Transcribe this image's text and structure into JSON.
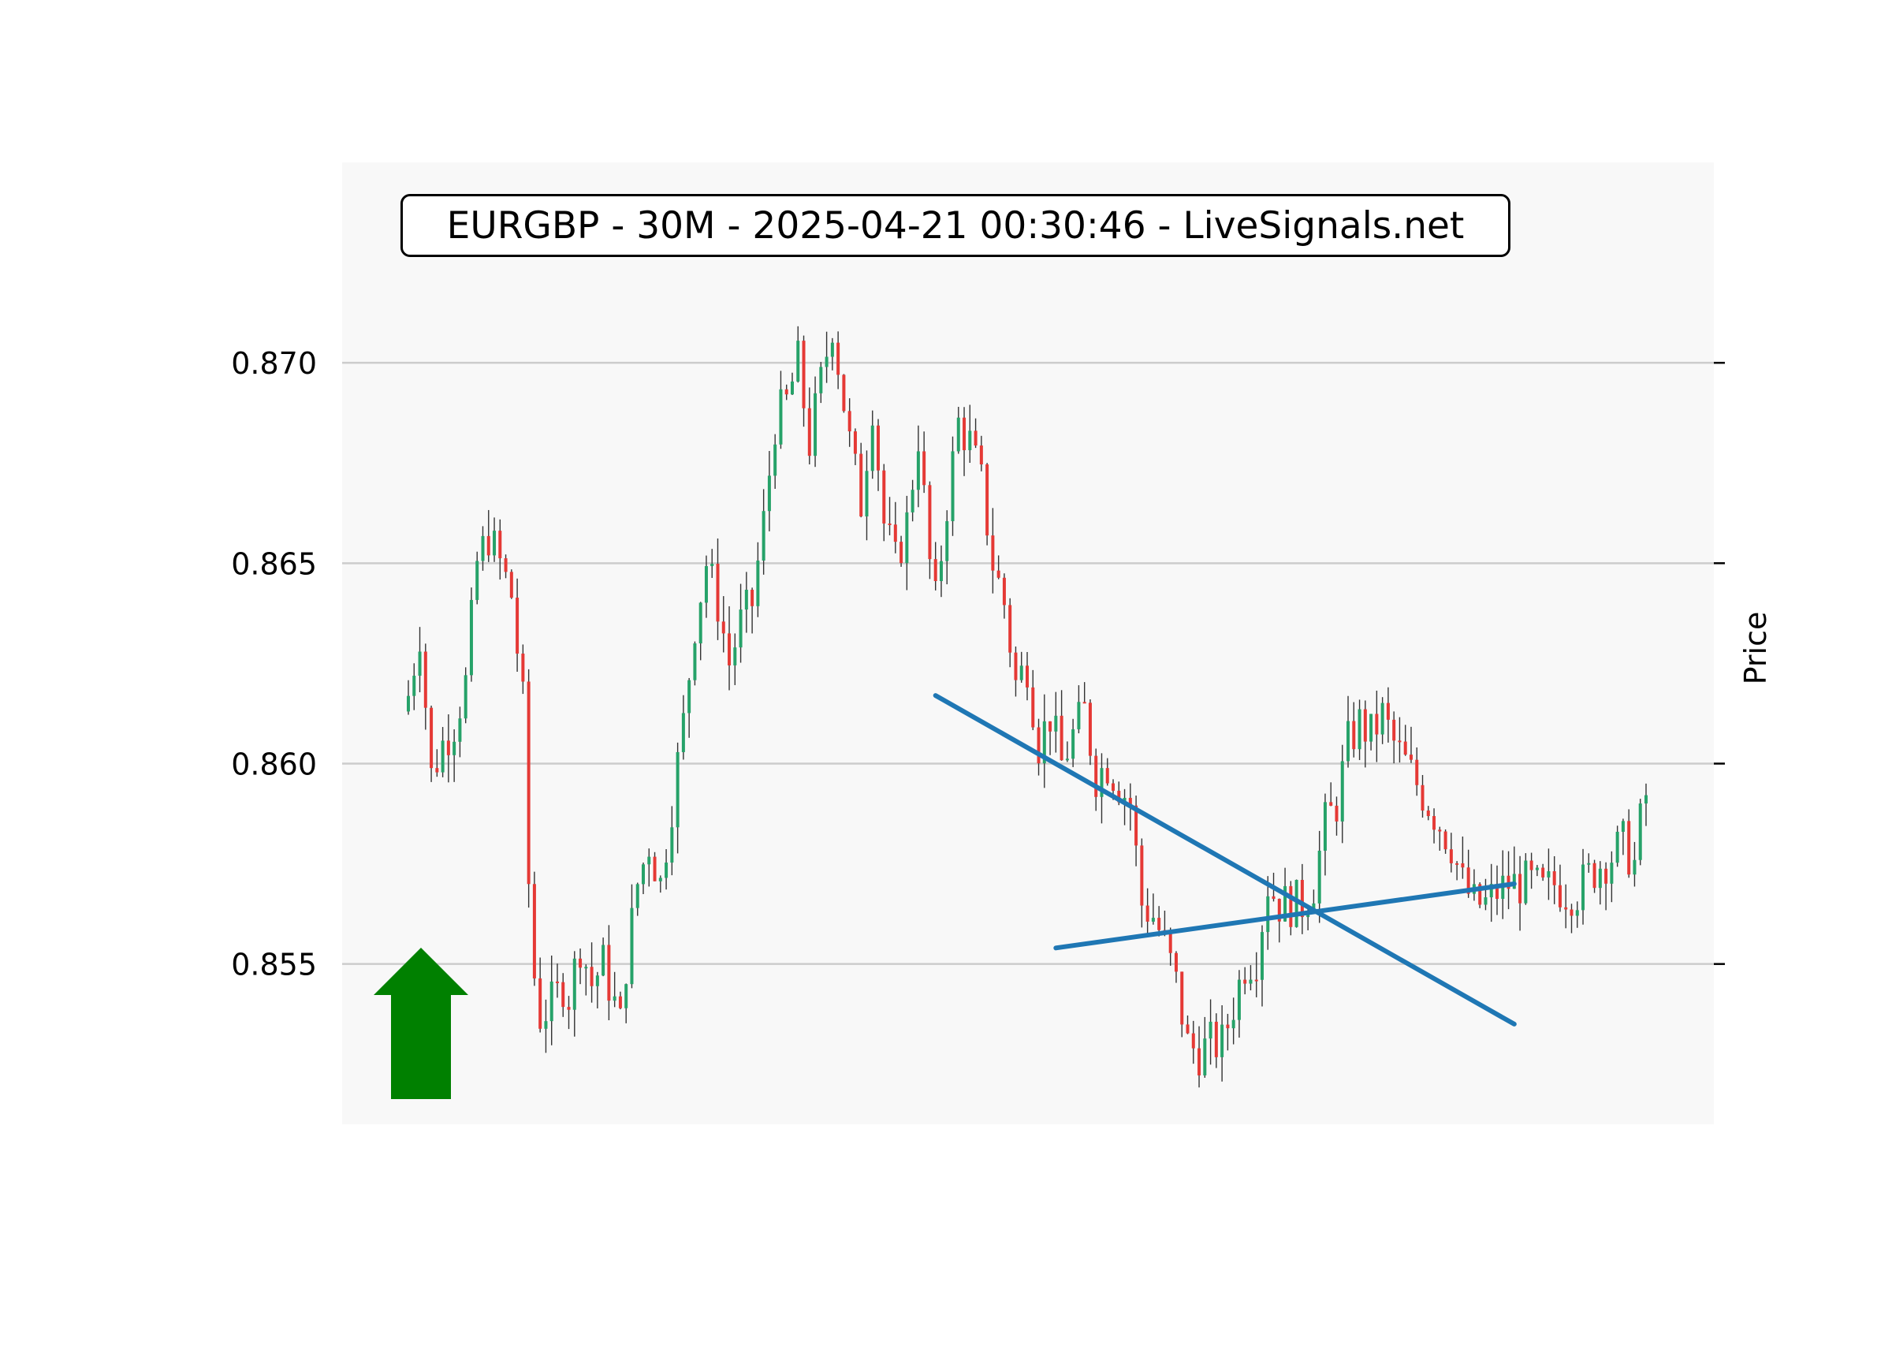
{
  "chart_data": {
    "type": "candlestick",
    "title": "EURGBP - 30M - 2025-04-21 00:30:46 - LiveSignals.net",
    "ylabel": "Price",
    "xlabel": "",
    "ylim": [
      0.851,
      0.875
    ],
    "yticks": [
      "0.855",
      "0.860",
      "0.865",
      "0.870"
    ],
    "ytick_values": [
      0.855,
      0.86,
      0.865,
      0.87
    ],
    "grid": "horizontal",
    "colors": {
      "up": "#26a269",
      "down": "#e53935",
      "wick": "#333333",
      "trendline": "#1f77b4",
      "signal_arrow": "#008000",
      "plot_bg": "#f8f8f8",
      "grid": "#cccccc"
    },
    "signal": {
      "direction": "up",
      "icon": "up-arrow-icon"
    },
    "trendlines": [
      {
        "name": "",
        "start_index": 92,
        "start_value": 0.8617,
        "end_index": 193,
        "end_value": 0.8535
      },
      {
        "name": "",
        "start_index": 113,
        "start_value": 0.8554,
        "end_index": 193,
        "end_value": 0.857
      }
    ],
    "close_path": [
      [
        0,
        0.8617
      ],
      [
        2,
        0.8633
      ],
      [
        4,
        0.8597
      ],
      [
        6,
        0.8605
      ],
      [
        8,
        0.861
      ],
      [
        10,
        0.862
      ],
      [
        12,
        0.865
      ],
      [
        14,
        0.8657
      ],
      [
        16,
        0.865
      ],
      [
        18,
        0.8642
      ],
      [
        20,
        0.8615
      ],
      [
        21,
        0.857
      ],
      [
        22,
        0.8547
      ],
      [
        23,
        0.8537
      ],
      [
        25,
        0.854
      ],
      [
        27,
        0.8545
      ],
      [
        28,
        0.8542
      ],
      [
        30,
        0.8555
      ],
      [
        32,
        0.8545
      ],
      [
        34,
        0.855
      ],
      [
        36,
        0.854
      ],
      [
        37,
        0.8535
      ],
      [
        38,
        0.855
      ],
      [
        40,
        0.857
      ],
      [
        42,
        0.858
      ],
      [
        44,
        0.857
      ],
      [
        46,
        0.859
      ],
      [
        48,
        0.861
      ],
      [
        50,
        0.8635
      ],
      [
        52,
        0.865
      ],
      [
        54,
        0.864
      ],
      [
        56,
        0.8625
      ],
      [
        58,
        0.8635
      ],
      [
        60,
        0.864
      ],
      [
        62,
        0.866
      ],
      [
        64,
        0.8685
      ],
      [
        66,
        0.869
      ],
      [
        68,
        0.87
      ],
      [
        70,
        0.868
      ],
      [
        72,
        0.8695
      ],
      [
        74,
        0.871
      ],
      [
        75,
        0.87
      ],
      [
        77,
        0.868
      ],
      [
        79,
        0.8665
      ],
      [
        81,
        0.869
      ],
      [
        83,
        0.866
      ],
      [
        85,
        0.865
      ],
      [
        87,
        0.866
      ],
      [
        89,
        0.8682
      ],
      [
        91,
        0.865
      ],
      [
        92,
        0.864
      ],
      [
        94,
        0.8665
      ],
      [
        96,
        0.8685
      ],
      [
        98,
        0.868
      ],
      [
        100,
        0.867
      ],
      [
        102,
        0.865
      ],
      [
        104,
        0.864
      ],
      [
        106,
        0.862
      ],
      [
        108,
        0.8625
      ],
      [
        110,
        0.8605
      ],
      [
        112,
        0.8612
      ],
      [
        114,
        0.86
      ],
      [
        116,
        0.8607
      ],
      [
        118,
        0.8613
      ],
      [
        120,
        0.8597
      ],
      [
        122,
        0.86
      ],
      [
        124,
        0.8595
      ],
      [
        126,
        0.859
      ],
      [
        128,
        0.8565
      ],
      [
        130,
        0.8562
      ],
      [
        132,
        0.8555
      ],
      [
        134,
        0.8545
      ],
      [
        136,
        0.853
      ],
      [
        138,
        0.8528
      ],
      [
        140,
        0.853
      ],
      [
        142,
        0.853
      ],
      [
        144,
        0.854
      ],
      [
        146,
        0.855
      ],
      [
        148,
        0.8552
      ],
      [
        150,
        0.857
      ],
      [
        152,
        0.8565
      ],
      [
        154,
        0.8565
      ],
      [
        156,
        0.8565
      ],
      [
        158,
        0.857
      ],
      [
        160,
        0.8585
      ],
      [
        162,
        0.859
      ],
      [
        164,
        0.8605
      ],
      [
        166,
        0.861
      ],
      [
        168,
        0.8607
      ],
      [
        170,
        0.8612
      ],
      [
        172,
        0.8605
      ],
      [
        174,
        0.86
      ],
      [
        176,
        0.8595
      ],
      [
        178,
        0.859
      ],
      [
        180,
        0.8585
      ],
      [
        182,
        0.858
      ],
      [
        184,
        0.857
      ],
      [
        186,
        0.8565
      ],
      [
        188,
        0.8565
      ],
      [
        190,
        0.8568
      ],
      [
        192,
        0.857
      ],
      [
        194,
        0.857
      ],
      [
        196,
        0.857
      ],
      [
        198,
        0.8568
      ],
      [
        200,
        0.857
      ],
      [
        202,
        0.8568
      ],
      [
        204,
        0.8568
      ],
      [
        206,
        0.8572
      ],
      [
        208,
        0.8575
      ],
      [
        210,
        0.8577
      ],
      [
        212,
        0.858
      ],
      [
        214,
        0.8575
      ],
      [
        215,
        0.8585
      ],
      [
        216,
        0.8592
      ]
    ],
    "candle_count": 217
  }
}
